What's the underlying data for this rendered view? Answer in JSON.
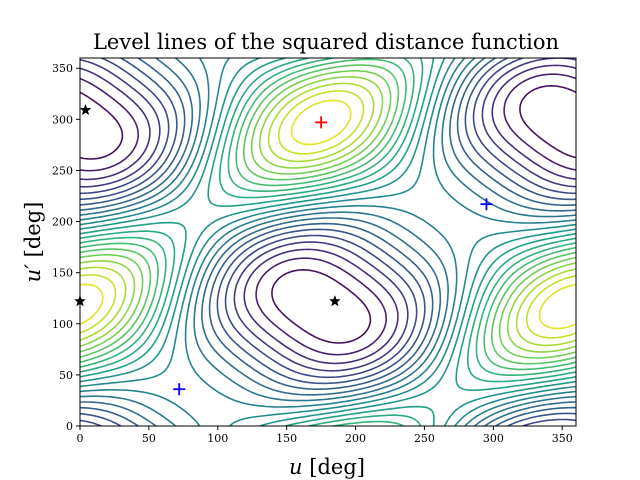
{
  "chart_data": {
    "type": "contour",
    "title": "Level lines of the squared distance function",
    "xlabel_var": "u",
    "xlabel_unit": " [deg]",
    "ylabel_var": "u′",
    "ylabel_unit": " [deg]",
    "xlim": [
      0,
      360
    ],
    "ylim": [
      0,
      360
    ],
    "xticks": [
      0,
      50,
      100,
      150,
      200,
      250,
      300,
      350
    ],
    "yticks": [
      0,
      50,
      100,
      150,
      200,
      250,
      300,
      350
    ],
    "grid": false,
    "colormap": [
      "#440154",
      "#482878",
      "#3e4989",
      "#31688e",
      "#26828e",
      "#1f9e89",
      "#35b779",
      "#6ece58",
      "#b5de2b",
      "#fde725"
    ],
    "minima": [
      {
        "u": 72,
        "v": 36,
        "color": "#0000ff"
      },
      {
        "u": 295,
        "v": 217,
        "color": "#0000ff"
      }
    ],
    "maximum": {
      "u": 175,
      "v": 297,
      "color": "#ff0000"
    },
    "saddles": [
      {
        "u": 4,
        "v": 309
      },
      {
        "u": 0,
        "v": 122
      },
      {
        "u": 185,
        "v": 122
      }
    ]
  }
}
